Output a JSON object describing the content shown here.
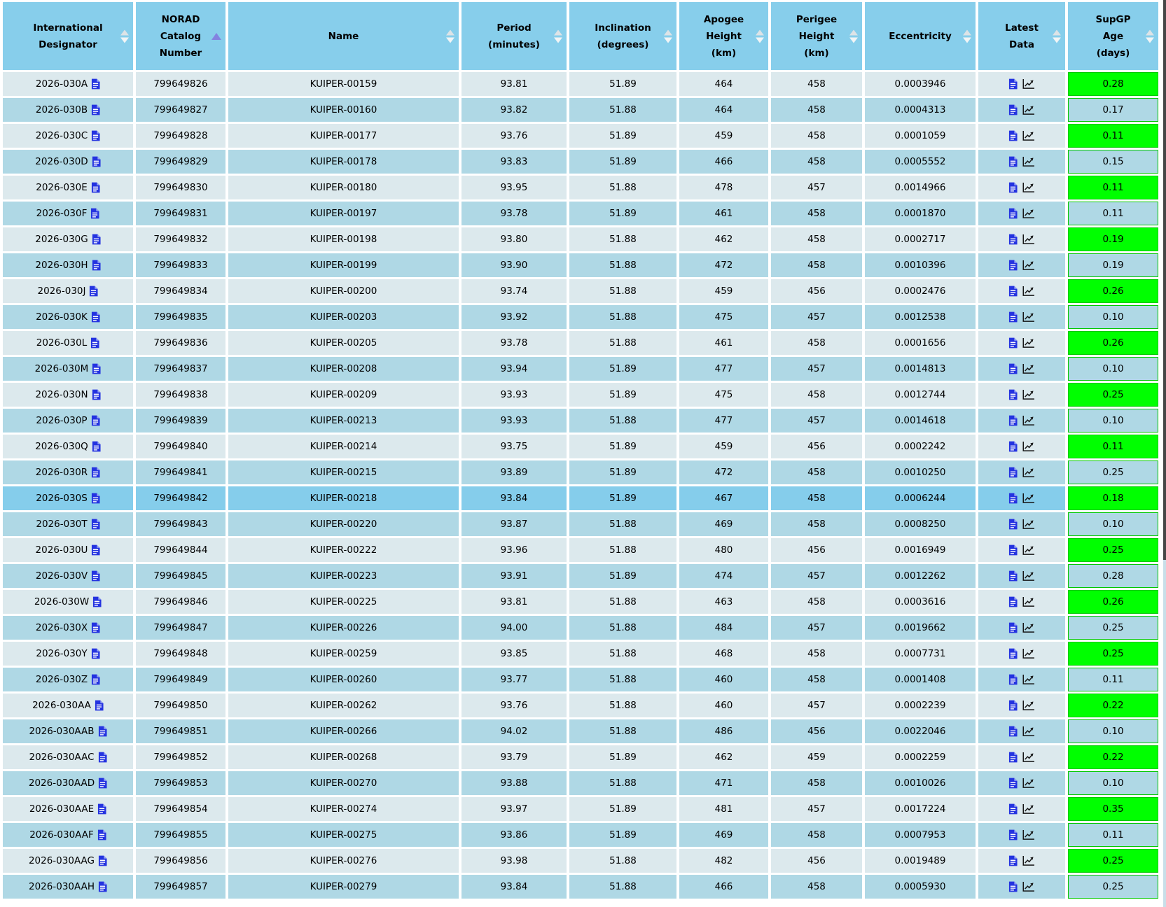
{
  "table": {
    "columns": [
      {
        "id": "designator",
        "label": "International\nDesignator",
        "sort": "both"
      },
      {
        "id": "norad",
        "label": "NORAD\nCatalog\nNumber",
        "sort": "asc"
      },
      {
        "id": "name",
        "label": "Name",
        "sort": "both"
      },
      {
        "id": "period",
        "label": "Period\n(minutes)",
        "sort": "both"
      },
      {
        "id": "inclination",
        "label": "Inclination\n(degrees)",
        "sort": "both"
      },
      {
        "id": "apogee",
        "label": "Apogee\nHeight\n(km)",
        "sort": "both"
      },
      {
        "id": "perigee",
        "label": "Perigee\nHeight\n(km)",
        "sort": "both"
      },
      {
        "id": "eccentricity",
        "label": "Eccentricity",
        "sort": "both"
      },
      {
        "id": "latest",
        "label": "Latest\nData",
        "sort": "both"
      },
      {
        "id": "age",
        "label": "SupGP\nAge\n(days)",
        "sort": "both"
      }
    ],
    "icons": {
      "designator_doc": "document-icon",
      "latest_doc": "document-icon",
      "latest_chart": "chart-line-icon",
      "sort_inactive": "sort-updown-icon",
      "sort_active": "sort-ascending-icon"
    },
    "colors": {
      "header_bg": "#87CEEB",
      "row_light": "#DCE9ED",
      "row_mid": "#AFD8E5",
      "row_highlight": "#85CDEB",
      "age_ok": "#00FF00",
      "doc_icon_blue": "#2433E0",
      "sort_active": "#8383E0"
    },
    "rows": [
      {
        "designator": "2026-030A",
        "norad": "799649826",
        "name": "KUIPER-00159",
        "period": "93.81",
        "inclination": "51.89",
        "apogee_km": "464",
        "perigee_km": "458",
        "eccentricity": "0.0003946",
        "supgp_age_days": "0.28"
      },
      {
        "designator": "2026-030B",
        "norad": "799649827",
        "name": "KUIPER-00160",
        "period": "93.82",
        "inclination": "51.88",
        "apogee_km": "464",
        "perigee_km": "458",
        "eccentricity": "0.0004313",
        "supgp_age_days": "0.17"
      },
      {
        "designator": "2026-030C",
        "norad": "799649828",
        "name": "KUIPER-00177",
        "period": "93.76",
        "inclination": "51.89",
        "apogee_km": "459",
        "perigee_km": "458",
        "eccentricity": "0.0001059",
        "supgp_age_days": "0.11"
      },
      {
        "designator": "2026-030D",
        "norad": "799649829",
        "name": "KUIPER-00178",
        "period": "93.83",
        "inclination": "51.89",
        "apogee_km": "466",
        "perigee_km": "458",
        "eccentricity": "0.0005552",
        "supgp_age_days": "0.15"
      },
      {
        "designator": "2026-030E",
        "norad": "799649830",
        "name": "KUIPER-00180",
        "period": "93.95",
        "inclination": "51.88",
        "apogee_km": "478",
        "perigee_km": "457",
        "eccentricity": "0.0014966",
        "supgp_age_days": "0.11"
      },
      {
        "designator": "2026-030F",
        "norad": "799649831",
        "name": "KUIPER-00197",
        "period": "93.78",
        "inclination": "51.89",
        "apogee_km": "461",
        "perigee_km": "458",
        "eccentricity": "0.0001870",
        "supgp_age_days": "0.11"
      },
      {
        "designator": "2026-030G",
        "norad": "799649832",
        "name": "KUIPER-00198",
        "period": "93.80",
        "inclination": "51.88",
        "apogee_km": "462",
        "perigee_km": "458",
        "eccentricity": "0.0002717",
        "supgp_age_days": "0.19"
      },
      {
        "designator": "2026-030H",
        "norad": "799649833",
        "name": "KUIPER-00199",
        "period": "93.90",
        "inclination": "51.88",
        "apogee_km": "472",
        "perigee_km": "458",
        "eccentricity": "0.0010396",
        "supgp_age_days": "0.19"
      },
      {
        "designator": "2026-030J",
        "norad": "799649834",
        "name": "KUIPER-00200",
        "period": "93.74",
        "inclination": "51.88",
        "apogee_km": "459",
        "perigee_km": "456",
        "eccentricity": "0.0002476",
        "supgp_age_days": "0.26"
      },
      {
        "designator": "2026-030K",
        "norad": "799649835",
        "name": "KUIPER-00203",
        "period": "93.92",
        "inclination": "51.88",
        "apogee_km": "475",
        "perigee_km": "457",
        "eccentricity": "0.0012538",
        "supgp_age_days": "0.10"
      },
      {
        "designator": "2026-030L",
        "norad": "799649836",
        "name": "KUIPER-00205",
        "period": "93.78",
        "inclination": "51.88",
        "apogee_km": "461",
        "perigee_km": "458",
        "eccentricity": "0.0001656",
        "supgp_age_days": "0.26"
      },
      {
        "designator": "2026-030M",
        "norad": "799649837",
        "name": "KUIPER-00208",
        "period": "93.94",
        "inclination": "51.89",
        "apogee_km": "477",
        "perigee_km": "457",
        "eccentricity": "0.0014813",
        "supgp_age_days": "0.10"
      },
      {
        "designator": "2026-030N",
        "norad": "799649838",
        "name": "KUIPER-00209",
        "period": "93.93",
        "inclination": "51.89",
        "apogee_km": "475",
        "perigee_km": "458",
        "eccentricity": "0.0012744",
        "supgp_age_days": "0.25"
      },
      {
        "designator": "2026-030P",
        "norad": "799649839",
        "name": "KUIPER-00213",
        "period": "93.93",
        "inclination": "51.88",
        "apogee_km": "477",
        "perigee_km": "457",
        "eccentricity": "0.0014618",
        "supgp_age_days": "0.10"
      },
      {
        "designator": "2026-030Q",
        "norad": "799649840",
        "name": "KUIPER-00214",
        "period": "93.75",
        "inclination": "51.89",
        "apogee_km": "459",
        "perigee_km": "456",
        "eccentricity": "0.0002242",
        "supgp_age_days": "0.11"
      },
      {
        "designator": "2026-030R",
        "norad": "799649841",
        "name": "KUIPER-00215",
        "period": "93.89",
        "inclination": "51.89",
        "apogee_km": "472",
        "perigee_km": "458",
        "eccentricity": "0.0010250",
        "supgp_age_days": "0.25"
      },
      {
        "designator": "2026-030S",
        "norad": "799649842",
        "name": "KUIPER-00218",
        "period": "93.84",
        "inclination": "51.89",
        "apogee_km": "467",
        "perigee_km": "458",
        "eccentricity": "0.0006244",
        "supgp_age_days": "0.18",
        "highlighted": true
      },
      {
        "designator": "2026-030T",
        "norad": "799649843",
        "name": "KUIPER-00220",
        "period": "93.87",
        "inclination": "51.88",
        "apogee_km": "469",
        "perigee_km": "458",
        "eccentricity": "0.0008250",
        "supgp_age_days": "0.10"
      },
      {
        "designator": "2026-030U",
        "norad": "799649844",
        "name": "KUIPER-00222",
        "period": "93.96",
        "inclination": "51.88",
        "apogee_km": "480",
        "perigee_km": "456",
        "eccentricity": "0.0016949",
        "supgp_age_days": "0.25"
      },
      {
        "designator": "2026-030V",
        "norad": "799649845",
        "name": "KUIPER-00223",
        "period": "93.91",
        "inclination": "51.89",
        "apogee_km": "474",
        "perigee_km": "457",
        "eccentricity": "0.0012262",
        "supgp_age_days": "0.28"
      },
      {
        "designator": "2026-030W",
        "norad": "799649846",
        "name": "KUIPER-00225",
        "period": "93.81",
        "inclination": "51.88",
        "apogee_km": "463",
        "perigee_km": "458",
        "eccentricity": "0.0003616",
        "supgp_age_days": "0.26"
      },
      {
        "designator": "2026-030X",
        "norad": "799649847",
        "name": "KUIPER-00226",
        "period": "94.00",
        "inclination": "51.88",
        "apogee_km": "484",
        "perigee_km": "457",
        "eccentricity": "0.0019662",
        "supgp_age_days": "0.25"
      },
      {
        "designator": "2026-030Y",
        "norad": "799649848",
        "name": "KUIPER-00259",
        "period": "93.85",
        "inclination": "51.88",
        "apogee_km": "468",
        "perigee_km": "458",
        "eccentricity": "0.0007731",
        "supgp_age_days": "0.25"
      },
      {
        "designator": "2026-030Z",
        "norad": "799649849",
        "name": "KUIPER-00260",
        "period": "93.77",
        "inclination": "51.88",
        "apogee_km": "460",
        "perigee_km": "458",
        "eccentricity": "0.0001408",
        "supgp_age_days": "0.11"
      },
      {
        "designator": "2026-030AA",
        "norad": "799649850",
        "name": "KUIPER-00262",
        "period": "93.76",
        "inclination": "51.88",
        "apogee_km": "460",
        "perigee_km": "457",
        "eccentricity": "0.0002239",
        "supgp_age_days": "0.22"
      },
      {
        "designator": "2026-030AAB",
        "norad": "799649851",
        "name": "KUIPER-00266",
        "period": "94.02",
        "inclination": "51.88",
        "apogee_km": "486",
        "perigee_km": "456",
        "eccentricity": "0.0022046",
        "supgp_age_days": "0.10"
      },
      {
        "designator": "2026-030AAC",
        "norad": "799649852",
        "name": "KUIPER-00268",
        "period": "93.79",
        "inclination": "51.89",
        "apogee_km": "462",
        "perigee_km": "459",
        "eccentricity": "0.0002259",
        "supgp_age_days": "0.22"
      },
      {
        "designator": "2026-030AAD",
        "norad": "799649853",
        "name": "KUIPER-00270",
        "period": "93.88",
        "inclination": "51.88",
        "apogee_km": "471",
        "perigee_km": "458",
        "eccentricity": "0.0010026",
        "supgp_age_days": "0.10"
      },
      {
        "designator": "2026-030AAE",
        "norad": "799649854",
        "name": "KUIPER-00274",
        "period": "93.97",
        "inclination": "51.89",
        "apogee_km": "481",
        "perigee_km": "457",
        "eccentricity": "0.0017224",
        "supgp_age_days": "0.35"
      },
      {
        "designator": "2026-030AAF",
        "norad": "799649855",
        "name": "KUIPER-00275",
        "period": "93.86",
        "inclination": "51.89",
        "apogee_km": "469",
        "perigee_km": "458",
        "eccentricity": "0.0007953",
        "supgp_age_days": "0.11"
      },
      {
        "designator": "2026-030AAG",
        "norad": "799649856",
        "name": "KUIPER-00276",
        "period": "93.98",
        "inclination": "51.88",
        "apogee_km": "482",
        "perigee_km": "456",
        "eccentricity": "0.0019489",
        "supgp_age_days": "0.25"
      },
      {
        "designator": "2026-030AAH",
        "norad": "799649857",
        "name": "KUIPER-00279",
        "period": "93.84",
        "inclination": "51.88",
        "apogee_km": "466",
        "perigee_km": "458",
        "eccentricity": "0.0005930",
        "supgp_age_days": "0.25"
      }
    ]
  }
}
